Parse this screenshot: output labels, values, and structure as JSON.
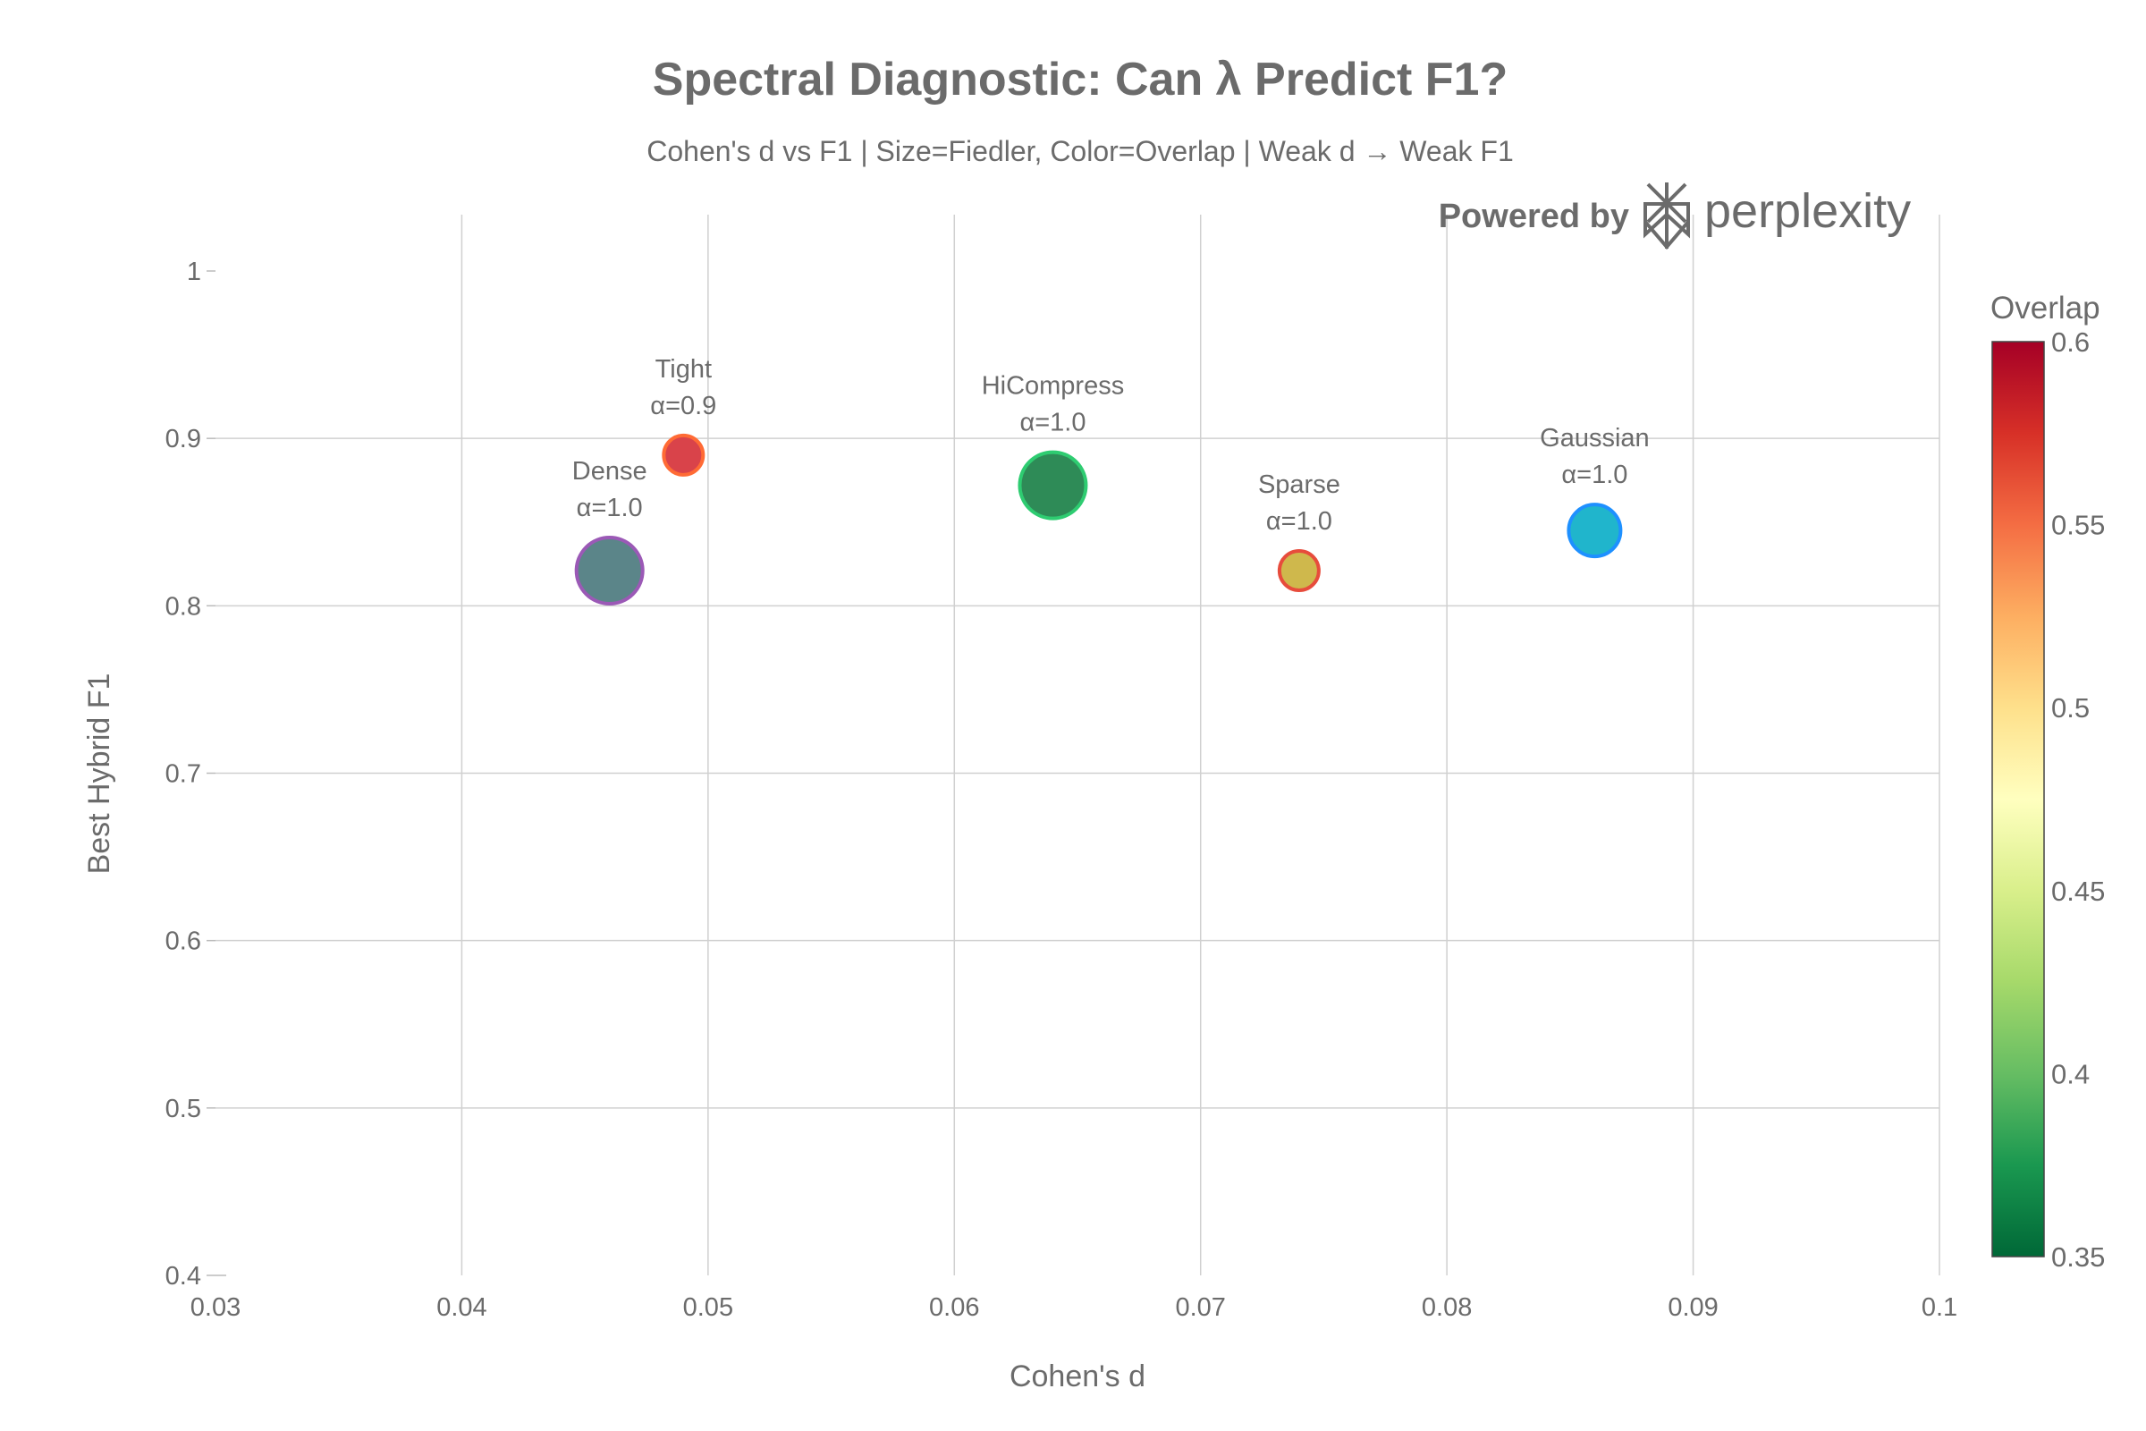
{
  "chart_data": {
    "type": "scatter",
    "title": "Spectral Diagnostic: Can λ Predict F1?",
    "subtitle": "Cohen's d vs F1 | Size=Fiedler, Color=Overlap | Weak d → Weak F1",
    "xlabel": "Cohen's d",
    "ylabel": "Best Hybrid F1",
    "xlim": [
      0.03,
      0.1
    ],
    "ylim": [
      0.4,
      1.0
    ],
    "xticks": [
      "0.03",
      "0.04",
      "0.05",
      "0.06",
      "0.07",
      "0.08",
      "0.09",
      "0.1"
    ],
    "yticks": [
      "0.4",
      "0.5",
      "0.6",
      "0.7",
      "0.8",
      "0.9",
      "1"
    ],
    "grid": true,
    "points": [
      {
        "name": "Dense",
        "annotation": "α=1.0",
        "x": 0.046,
        "y": 0.821,
        "fill": "#5b8589",
        "line": "#9b59b6",
        "size": "large"
      },
      {
        "name": "Tight",
        "annotation": "α=0.9",
        "x": 0.049,
        "y": 0.89,
        "fill": "#d9434a",
        "line": "#ff6b35",
        "size": "small"
      },
      {
        "name": "HiCompress",
        "annotation": "α=1.0",
        "x": 0.064,
        "y": 0.872,
        "fill": "#2e8b57",
        "line": "#2ecc71",
        "size": "large"
      },
      {
        "name": "Sparse",
        "annotation": "α=1.0",
        "x": 0.074,
        "y": 0.821,
        "fill": "#cfb84c",
        "line": "#e74c3c",
        "size": "small"
      },
      {
        "name": "Gaussian",
        "annotation": "α=1.0",
        "x": 0.086,
        "y": 0.845,
        "fill": "#20b5cc",
        "line": "#1e90ff",
        "size": "medium"
      }
    ],
    "colorbar": {
      "title": "Overlap",
      "range": [
        0.35,
        0.6
      ],
      "ticks": [
        "0.6",
        "0.55",
        "0.5",
        "0.45",
        "0.4",
        "0.35"
      ],
      "colorscale": [
        "#006837",
        "#1a9850",
        "#66bd63",
        "#a6d96a",
        "#d9ef8b",
        "#ffffbf",
        "#fee08b",
        "#fdae61",
        "#f46d43",
        "#d73027",
        "#a50026"
      ]
    }
  },
  "watermark": {
    "prefix": "Powered by",
    "brand": "perplexity"
  }
}
